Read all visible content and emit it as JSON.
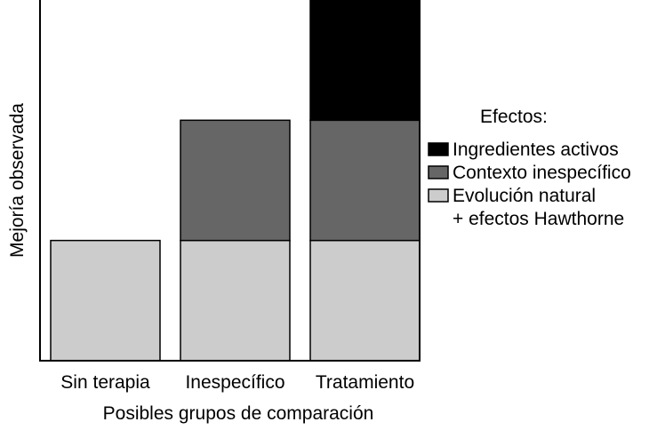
{
  "chart_data": {
    "type": "bar",
    "stacked": true,
    "title": "",
    "xlabel": "Posibles grupos de comparación",
    "ylabel": "Mejoría observada",
    "categories": [
      "Sin terapia",
      "Inespecífico",
      "Tratamiento"
    ],
    "ylim": [
      0,
      3
    ],
    "y_ticks_visible": false,
    "grid": false,
    "series": [
      {
        "name": "Evolución natural",
        "name_line2": "+ efectos Hawthorne",
        "values": [
          1,
          1,
          1
        ],
        "color": "#cccccc"
      },
      {
        "name": "Contexto inespecífico",
        "values": [
          0,
          1,
          1
        ],
        "color": "#666666"
      },
      {
        "name": "Ingredientes activos",
        "values": [
          0,
          0,
          1
        ],
        "color": "#000000"
      }
    ],
    "legend": {
      "title": "Efectos:",
      "placement": "right",
      "order": [
        "Ingredientes activos",
        "Contexto inespecífico",
        "Evolución natural"
      ]
    }
  }
}
